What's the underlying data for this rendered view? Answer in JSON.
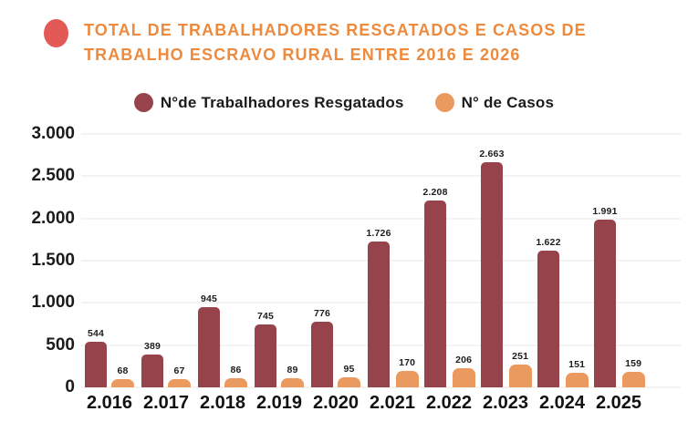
{
  "header": {
    "title_line1": "TOTAL DE TRABALHADORES RESGATADOS E CASOS DE",
    "title_line2": "TRABALHO ESCRAVO RURAL ENTRE 2016 E 2026"
  },
  "colors": {
    "title": "#ED8A3E",
    "bullet": "#E25956",
    "grid": "#E7E7E7",
    "axis_text": "#1B1B1B"
  },
  "chart_data": {
    "type": "bar",
    "title": "TOTAL DE TRABALHADORES RESGATADOS E CASOS DE TRABALHO ESCRAVO RURAL ENTRE 2016 E 2026",
    "categories": [
      "2.016",
      "2.017",
      "2.018",
      "2.019",
      "2.020",
      "2.021",
      "2.022",
      "2.023",
      "2.024",
      "2.025"
    ],
    "series": [
      {
        "name": "N°de Trabalhadores Resgatados",
        "color": "#97434B",
        "values": [
          544,
          389,
          945,
          745,
          776,
          1726,
          2208,
          2663,
          1622,
          1991
        ],
        "labels": [
          "544",
          "389",
          "945",
          "745",
          "776",
          "1.726",
          "2.208",
          "2.663",
          "1.622",
          "1.991"
        ]
      },
      {
        "name": "N° de Casos",
        "color": "#EA9A5E",
        "values": [
          68,
          67,
          86,
          89,
          95,
          170,
          206,
          251,
          151,
          159
        ],
        "labels": [
          "68",
          "67",
          "86",
          "89",
          "95",
          "170",
          "206",
          "251",
          "151",
          "159"
        ]
      }
    ],
    "ylim": [
      0,
      3000
    ],
    "yticks": [
      {
        "value": 3000,
        "label": "3.000"
      },
      {
        "value": 2500,
        "label": "2.500"
      },
      {
        "value": 2000,
        "label": "2.000"
      },
      {
        "value": 1500,
        "label": "1.500"
      },
      {
        "value": 1000,
        "label": "1.000"
      },
      {
        "value": 500,
        "label": "500"
      },
      {
        "value": 0,
        "label": "0"
      }
    ],
    "grid": true,
    "legend_position": "top"
  }
}
